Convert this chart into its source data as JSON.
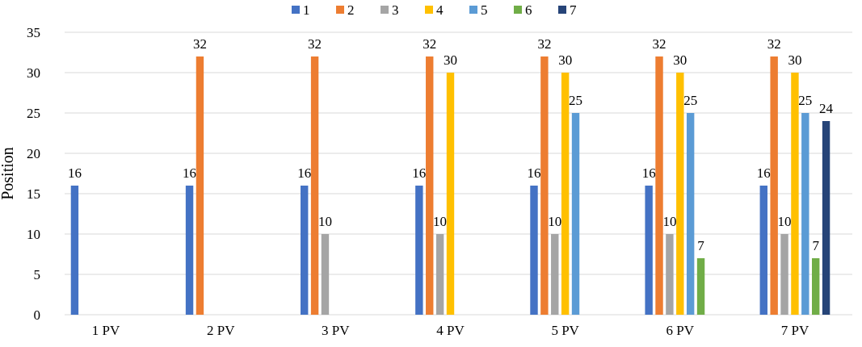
{
  "chart_data": {
    "type": "bar",
    "ylabel": "Position",
    "categories": [
      "1 PV",
      "2 PV",
      "3 PV",
      "4 PV",
      "5 PV",
      "6 PV",
      "7 PV"
    ],
    "series": [
      {
        "name": "1",
        "color": "#4472c4",
        "values": [
          16,
          16,
          16,
          16,
          16,
          16,
          16
        ]
      },
      {
        "name": "2",
        "color": "#ed7d31",
        "values": [
          null,
          32,
          32,
          32,
          32,
          32,
          32
        ]
      },
      {
        "name": "3",
        "color": "#a5a5a5",
        "values": [
          null,
          null,
          10,
          10,
          10,
          10,
          10
        ]
      },
      {
        "name": "4",
        "color": "#ffc000",
        "values": [
          null,
          null,
          null,
          30,
          30,
          30,
          30
        ]
      },
      {
        "name": "5",
        "color": "#5b9bd5",
        "values": [
          null,
          null,
          null,
          null,
          25,
          25,
          25
        ]
      },
      {
        "name": "6",
        "color": "#70ad47",
        "values": [
          null,
          null,
          null,
          null,
          null,
          7,
          7
        ]
      },
      {
        "name": "7",
        "color": "#264478",
        "values": [
          null,
          null,
          null,
          null,
          null,
          null,
          24
        ]
      }
    ],
    "ylim": [
      0,
      35
    ],
    "yticks": [
      0,
      5,
      10,
      15,
      20,
      25,
      30,
      35
    ],
    "grid": "y",
    "legend": "top",
    "data_labels": true
  }
}
